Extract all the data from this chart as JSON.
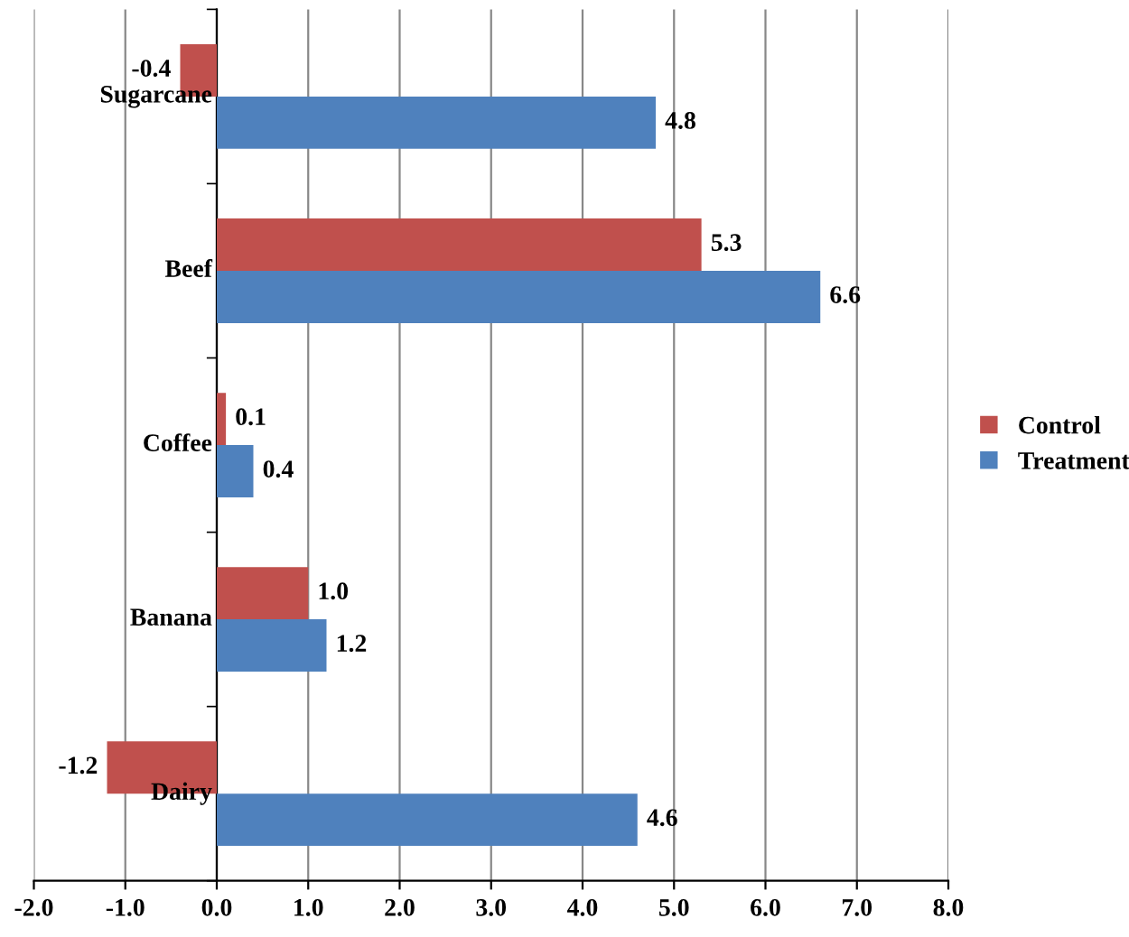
{
  "chart_data": {
    "type": "bar",
    "orientation": "horizontal",
    "categories": [
      "Sugarcane",
      "Beef",
      "Coffee",
      "Banana",
      "Dairy"
    ],
    "series": [
      {
        "name": "Control",
        "color": "#c0504d",
        "values": [
          -0.4,
          5.3,
          0.1,
          1.0,
          -1.2
        ],
        "value_labels": [
          "-0.4",
          "5.3",
          "0.1",
          "1.0",
          "-1.2"
        ]
      },
      {
        "name": "Treatment",
        "color": "#4f81bd",
        "values": [
          4.8,
          6.6,
          0.4,
          1.2,
          4.6
        ],
        "value_labels": [
          "4.8",
          "6.6",
          "0.4",
          "1.2",
          "4.6"
        ]
      }
    ],
    "xlim": [
      -2,
      8
    ],
    "xticks": [
      {
        "value": -2,
        "label": "-2.0"
      },
      {
        "value": -1,
        "label": "-1.0"
      },
      {
        "value": 0,
        "label": "0.0"
      },
      {
        "value": 1,
        "label": "1.0"
      },
      {
        "value": 2,
        "label": "2.0"
      },
      {
        "value": 3,
        "label": "3.0"
      },
      {
        "value": 4,
        "label": "4.0"
      },
      {
        "value": 5,
        "label": "5.0"
      },
      {
        "value": 6,
        "label": "6.0"
      },
      {
        "value": 7,
        "label": "7.0"
      },
      {
        "value": 8,
        "label": "8.0"
      }
    ],
    "grid": "x",
    "legend": "right"
  }
}
